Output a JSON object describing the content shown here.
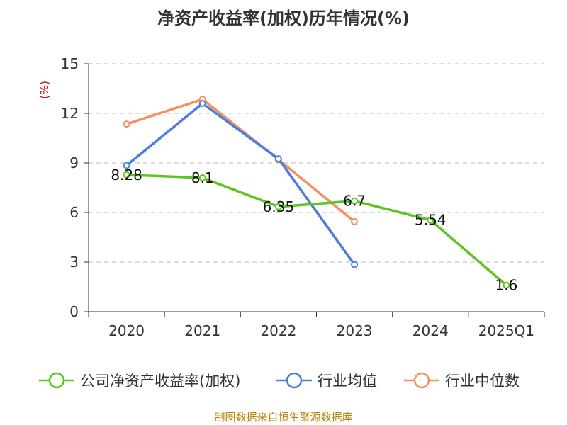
{
  "chart_data": {
    "type": "line",
    "title": "净资产收益率(加权)历年情况(%)",
    "ylabel": "(%)",
    "xlabel": "",
    "categories": [
      "2020",
      "2021",
      "2022",
      "2023",
      "2024",
      "2025Q1"
    ],
    "ylim": [
      0,
      15
    ],
    "yticks": [
      0,
      3,
      6,
      9,
      12,
      15
    ],
    "grid": true,
    "legend_position": "bottom",
    "series": [
      {
        "name": "公司净资产收益率(加权)",
        "color": "#5dc422",
        "values": [
          8.28,
          8.1,
          6.35,
          6.7,
          5.54,
          1.6
        ],
        "data_labels": [
          "8.28",
          "8.1",
          "6.35",
          "6.7",
          "5.54",
          "1.6"
        ]
      },
      {
        "name": "行业均值",
        "color": "#4a7fdb",
        "values": [
          8.85,
          12.6,
          9.25,
          2.85,
          null,
          null
        ]
      },
      {
        "name": "行业中位数",
        "color": "#f59062",
        "values": [
          11.35,
          12.85,
          9.2,
          5.45,
          null,
          null
        ]
      }
    ]
  },
  "source": "制图数据来自恒生聚源数据库"
}
